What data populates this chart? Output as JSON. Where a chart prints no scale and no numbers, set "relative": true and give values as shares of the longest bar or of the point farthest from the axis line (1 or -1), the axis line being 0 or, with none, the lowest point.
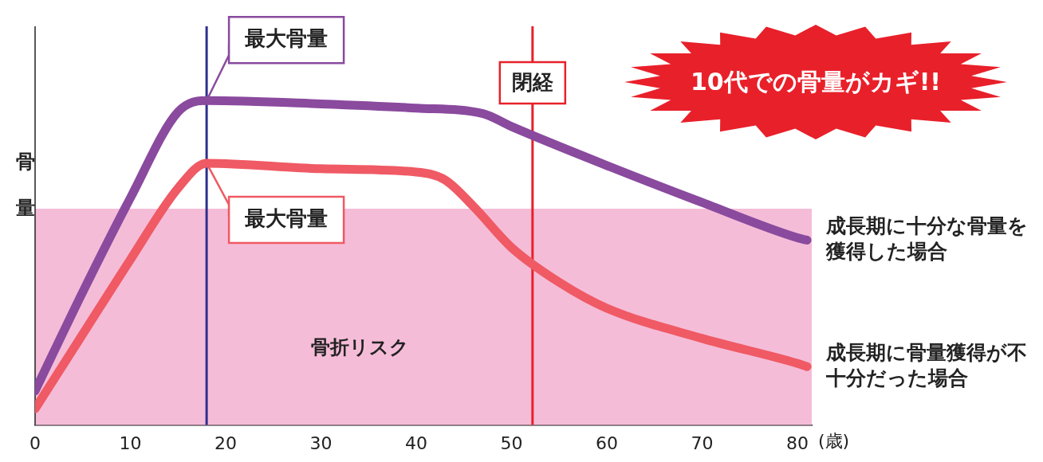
{
  "chart_data": {
    "type": "line",
    "relative": true,
    "xlabel": "(歳)",
    "ylabel": "骨量",
    "x": [
      0,
      5,
      10,
      15,
      18,
      30,
      40,
      47,
      50,
      60,
      70,
      80,
      81
    ],
    "xlim": [
      0,
      81.5
    ],
    "xticks": [
      0,
      10,
      20,
      30,
      40,
      50,
      60,
      70,
      80
    ],
    "series": [
      {
        "name": "成長期に十分な骨量を獲得した場合",
        "color": "#8a4a9e",
        "values": [
          0.105,
          0.41,
          0.7,
          0.965,
          1,
          0.99,
          0.977,
          0.96,
          0.92,
          0.8,
          0.686,
          0.577,
          0.57
        ]
      },
      {
        "name": "成長期に骨量獲得が不十分だった場合",
        "color": "#ef5a64",
        "x": [
          0,
          5,
          10,
          15,
          18,
          30,
          40,
          43,
          46,
          50,
          55,
          60,
          70,
          80,
          81
        ],
        "values": [
          0.05,
          0.28,
          0.51,
          0.73,
          0.807,
          0.79,
          0.78,
          0.756,
          0.674,
          0.547,
          0.44,
          0.36,
          0.267,
          0.19,
          0.18
        ]
      }
    ],
    "bands": [
      {
        "axis": "y",
        "from": 0,
        "to": 0.667,
        "label": "骨折リスク",
        "color": "#f5bcd8"
      }
    ],
    "ref_lines": [
      {
        "axis": "x",
        "value": 18,
        "color": "#2e2f8e"
      },
      {
        "axis": "x",
        "value": 52.2,
        "label": "閉経",
        "color": "#e8202a"
      }
    ],
    "annotations": [
      {
        "text": "最大骨量",
        "x": 18,
        "y": 1
      },
      {
        "text": "最大骨量",
        "x": 18,
        "y": 0.807
      },
      "10代での骨量がカギ!!"
    ],
    "grid": false,
    "legend": false,
    "marker": "none",
    "line_style": "solid"
  }
}
